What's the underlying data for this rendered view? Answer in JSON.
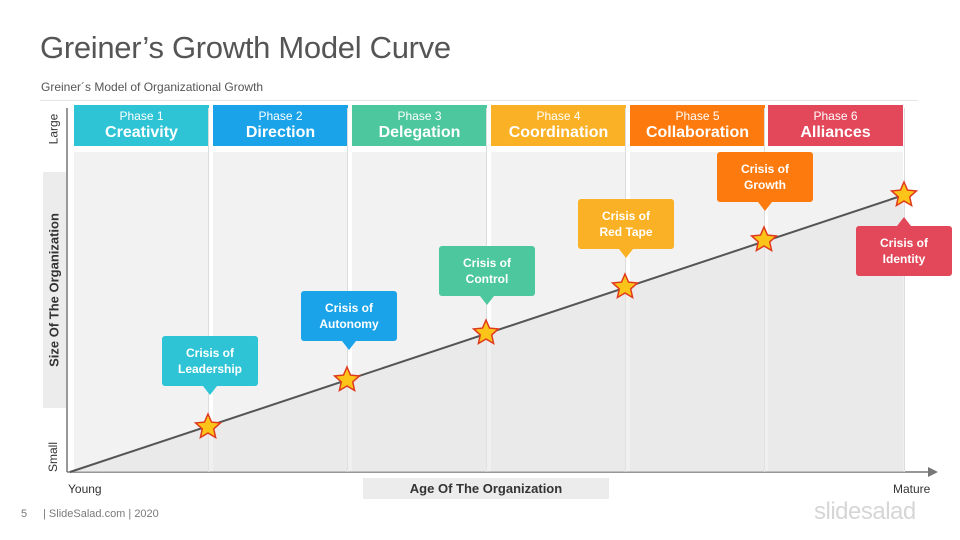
{
  "header": {
    "title": "Greiner’s Growth Model Curve",
    "subtitle": "Greiner´s  Model of Organizational  Growth"
  },
  "phases": [
    {
      "num": "Phase 1",
      "name": "Creativity",
      "color": "#2ec4d6"
    },
    {
      "num": "Phase 2",
      "name": "Direction",
      "color": "#1aa3e8"
    },
    {
      "num": "Phase 3",
      "name": "Delegation",
      "color": "#4cc79e"
    },
    {
      "num": "Phase 4",
      "name": "Coordination",
      "color": "#fbb125"
    },
    {
      "num": "Phase 5",
      "name": "Collaboration",
      "color": "#fd7a0e"
    },
    {
      "num": "Phase 6",
      "name": "Alliances",
      "color": "#e2485a"
    }
  ],
  "axes": {
    "y_title": "Size Of The Organization",
    "y_top": "Large",
    "y_bottom": "Small",
    "x_title": "Age Of The Organization",
    "x_left": "Young",
    "x_right": "Mature"
  },
  "crises": [
    {
      "label1": "Crisis of",
      "label2": "Leadership",
      "color": "#2ec4d6"
    },
    {
      "label1": "Crisis of",
      "label2": "Autonomy",
      "color": "#1aa3e8"
    },
    {
      "label1": "Crisis of",
      "label2": "Control",
      "color": "#4cc79e"
    },
    {
      "label1": "Crisis of",
      "label2": "Red Tape",
      "color": "#fbb125"
    },
    {
      "label1": "Crisis of",
      "label2": "Growth",
      "color": "#fd7a0e"
    },
    {
      "label1": "Crisis of",
      "label2": "Identity",
      "color": "#e2485a"
    }
  ],
  "star_icon": "star-icon",
  "footer": {
    "page": "5",
    "credit": "| SlideSalad.com | 2020",
    "logo": "slidesalad"
  }
}
